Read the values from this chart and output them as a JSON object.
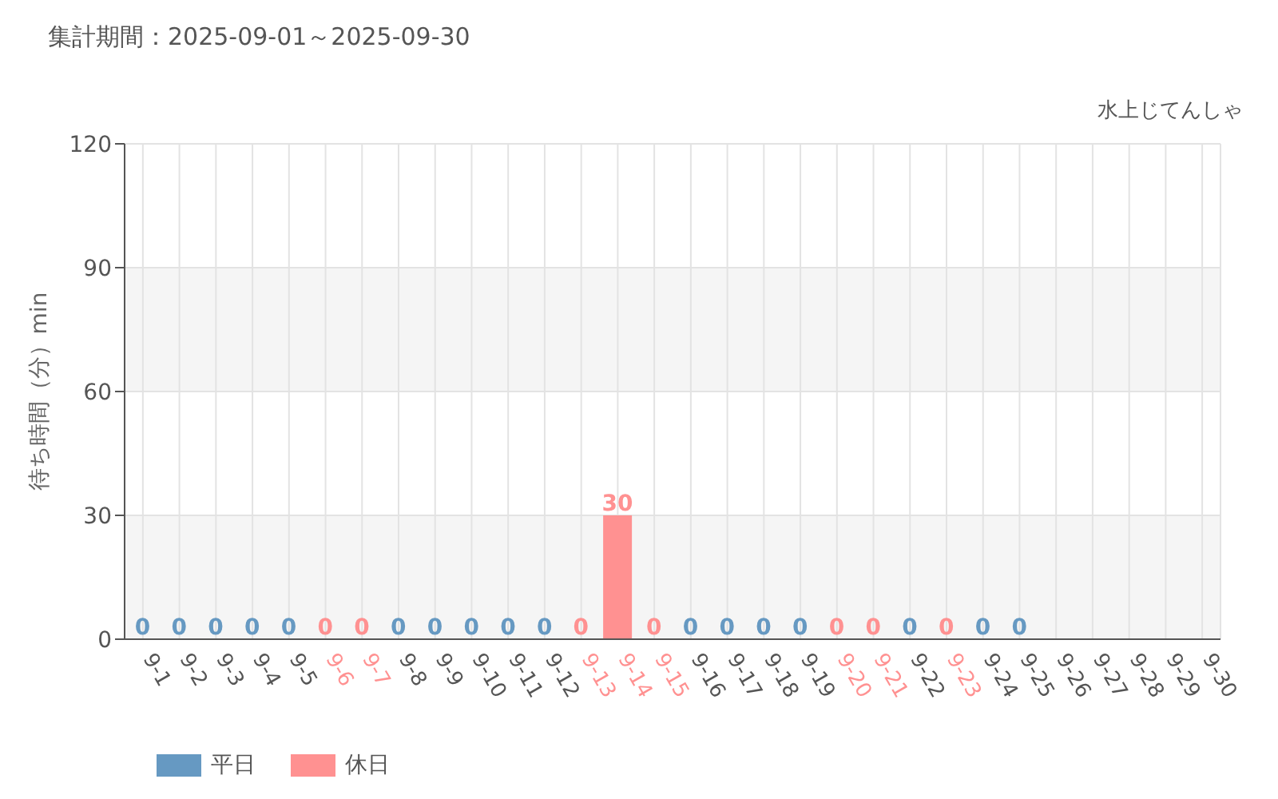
{
  "chart_data": {
    "type": "bar",
    "title": "集計期間：2025-09-01～2025-09-30",
    "subtitle": "水上じてんしゃ",
    "ylabel": "待ち時間（分）min",
    "categories": [
      "9-1",
      "9-2",
      "9-3",
      "9-4",
      "9-5",
      "9-6",
      "9-7",
      "9-8",
      "9-9",
      "9-10",
      "9-11",
      "9-12",
      "9-13",
      "9-14",
      "9-15",
      "9-16",
      "9-17",
      "9-18",
      "9-19",
      "9-20",
      "9-21",
      "9-22",
      "9-23",
      "9-24",
      "9-25",
      "9-26",
      "9-27",
      "9-28",
      "9-29",
      "9-30"
    ],
    "series": [
      {
        "name": "平日",
        "color": "#6699c2",
        "values": [
          0,
          0,
          0,
          0,
          0,
          null,
          null,
          0,
          0,
          0,
          0,
          0,
          null,
          null,
          null,
          0,
          0,
          0,
          0,
          null,
          null,
          0,
          null,
          0,
          0,
          null,
          null,
          null,
          null,
          null
        ]
      },
      {
        "name": "休日",
        "color": "#ff9191",
        "values": [
          null,
          null,
          null,
          null,
          null,
          0,
          0,
          null,
          null,
          null,
          null,
          null,
          0,
          30,
          0,
          null,
          null,
          null,
          null,
          0,
          0,
          null,
          0,
          null,
          null,
          null,
          null,
          null,
          null,
          null
        ]
      }
    ],
    "stacked": true,
    "ylim": [
      0,
      120
    ],
    "yticks": [
      0,
      30,
      60,
      90,
      120
    ],
    "grid": true,
    "legend": "bottom left",
    "data_labels": true
  }
}
